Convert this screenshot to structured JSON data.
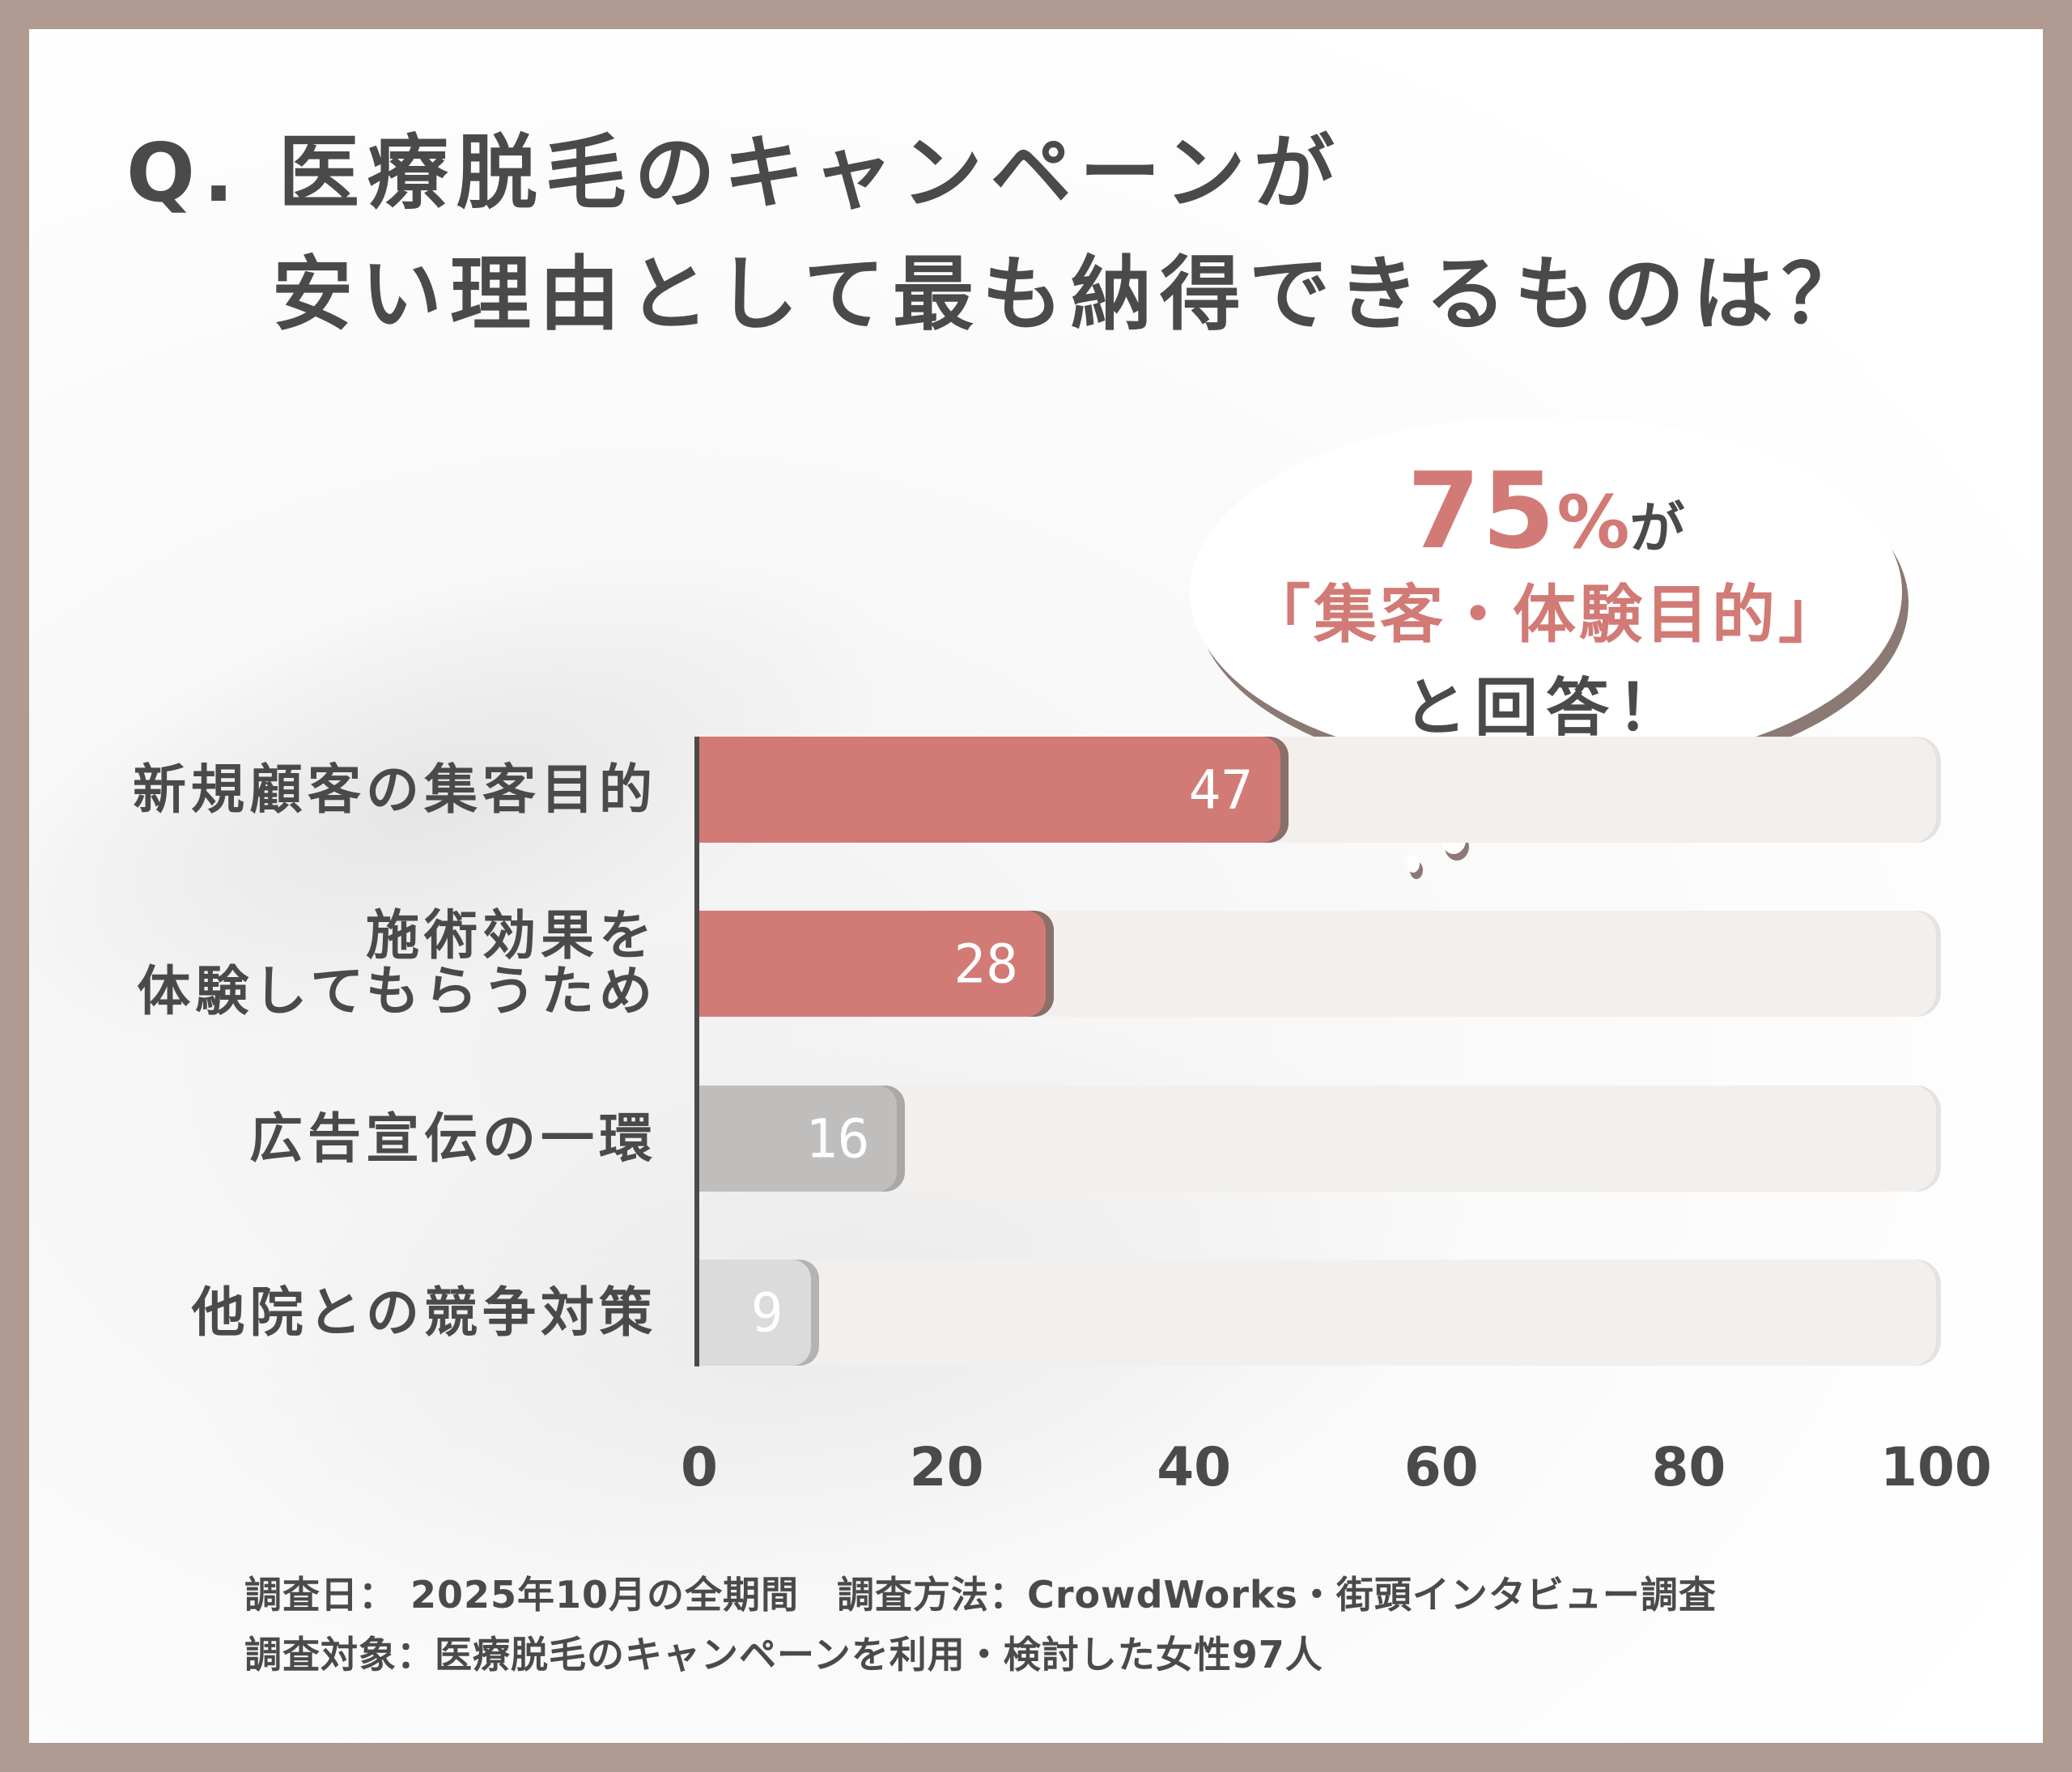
{
  "title": {
    "line1": "Q. 医療脱毛のキャンペーンが",
    "line2": "安い理由として最も納得できるものは？"
  },
  "callout": {
    "big_number": "75",
    "percent": "%",
    "particle": "が",
    "highlight": "「集客・体験目的」",
    "closing": "と回答！"
  },
  "colors": {
    "frame": "#b19a91",
    "highlight_bar": "#d27a75",
    "highlight_shadow": "#8a6f6a",
    "gray_bar": "#c0bebd",
    "light_gray_bar": "#dcdbdb",
    "track": "#f2efed",
    "text": "#4a4a4a"
  },
  "chart_data": {
    "type": "bar",
    "orientation": "horizontal",
    "title": "Q. 医療脱毛のキャンペーンが安い理由として最も納得できるものは？",
    "categories": [
      "新規顧客の集客目的",
      "施術効果を体験してもらうため",
      "広告宣伝の一環",
      "他院との競争対策"
    ],
    "category_display": [
      [
        "新規顧客の集客目的"
      ],
      [
        "施術効果を",
        "体験してもらうため"
      ],
      [
        "広告宣伝の一環"
      ],
      [
        "他院との競争対策"
      ]
    ],
    "values": [
      47,
      28,
      16,
      9
    ],
    "value_labels": [
      "47",
      "28",
      "16",
      "9"
    ],
    "xlabel": "",
    "ylabel": "",
    "xlim": [
      0,
      100
    ],
    "xticks": [
      "0",
      "20",
      "40",
      "60",
      "80",
      "100"
    ],
    "grid": false,
    "legend": null,
    "annotation": "75%が「集客・体験目的」と回答！"
  },
  "footer": {
    "line1": "調査日： 2025年10月の全期間　調査方法：CrowdWorks・街頭インタビュー調査",
    "line2": "調査対象：医療脱毛のキャンペーンを利用・検討した女性97人"
  }
}
